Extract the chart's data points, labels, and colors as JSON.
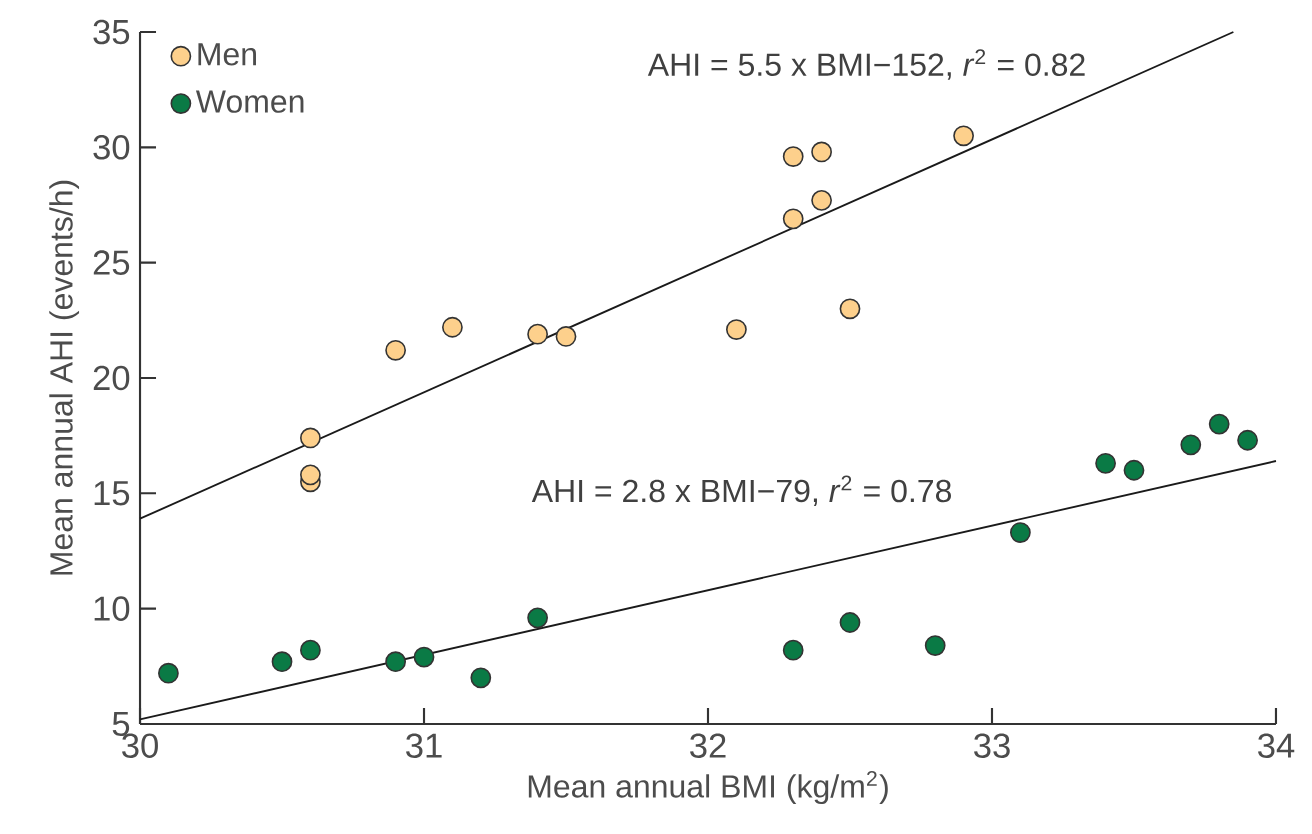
{
  "chart_data": {
    "type": "scatter",
    "xlabel": "Mean annual BMI (kg/m$^{2}$)",
    "ylabel": "Mean annual AHI (events/h)",
    "xlim": [
      30,
      34
    ],
    "xticks": [
      30,
      31,
      32,
      33,
      34
    ],
    "ylim": [
      5,
      35
    ],
    "yticks": [
      5,
      10,
      15,
      20,
      25,
      30,
      35
    ],
    "grid": false,
    "legend": "top left",
    "marker": "circle",
    "series": [
      {
        "name": "Men",
        "color": "#fdd08c",
        "x": [
          30.6,
          30.6,
          30.6,
          30.9,
          31.1,
          31.4,
          31.5,
          32.1,
          32.3,
          32.4,
          32.4,
          32.3,
          32.5,
          32.9
        ],
        "values": [
          17.4,
          15.5,
          15.8,
          21.2,
          22.2,
          21.9,
          21.8,
          22.1,
          29.6,
          29.8,
          27.7,
          26.9,
          23.0,
          30.5
        ]
      },
      {
        "name": "Women",
        "color": "#0a7a45",
        "x": [
          30.1,
          30.5,
          30.6,
          30.9,
          31.0,
          31.2,
          31.4,
          32.3,
          32.5,
          32.8,
          33.1,
          33.4,
          33.5,
          33.7,
          33.8,
          33.9
        ],
        "values": [
          7.2,
          7.7,
          8.2,
          7.7,
          7.9,
          7.0,
          9.6,
          8.2,
          9.4,
          8.4,
          13.3,
          16.3,
          16.0,
          17.1,
          18.0,
          17.3
        ]
      },
      {
        "type": "line",
        "color": "#1a1a1a",
        "marker": "none",
        "x": [
          30,
          33.85
        ],
        "values": [
          13.9,
          35
        ]
      },
      {
        "type": "line",
        "color": "#1a1a1a",
        "marker": "none",
        "x": [
          30,
          34
        ],
        "values": [
          5.2,
          16.4
        ]
      }
    ],
    "annotations": [
      "AHI = 5.5 x BMI−152, *r*$^{2}$ = 0.82",
      "AHI = 2.8 x BMI−79, *r*$^{2}$ = 0.78"
    ]
  }
}
